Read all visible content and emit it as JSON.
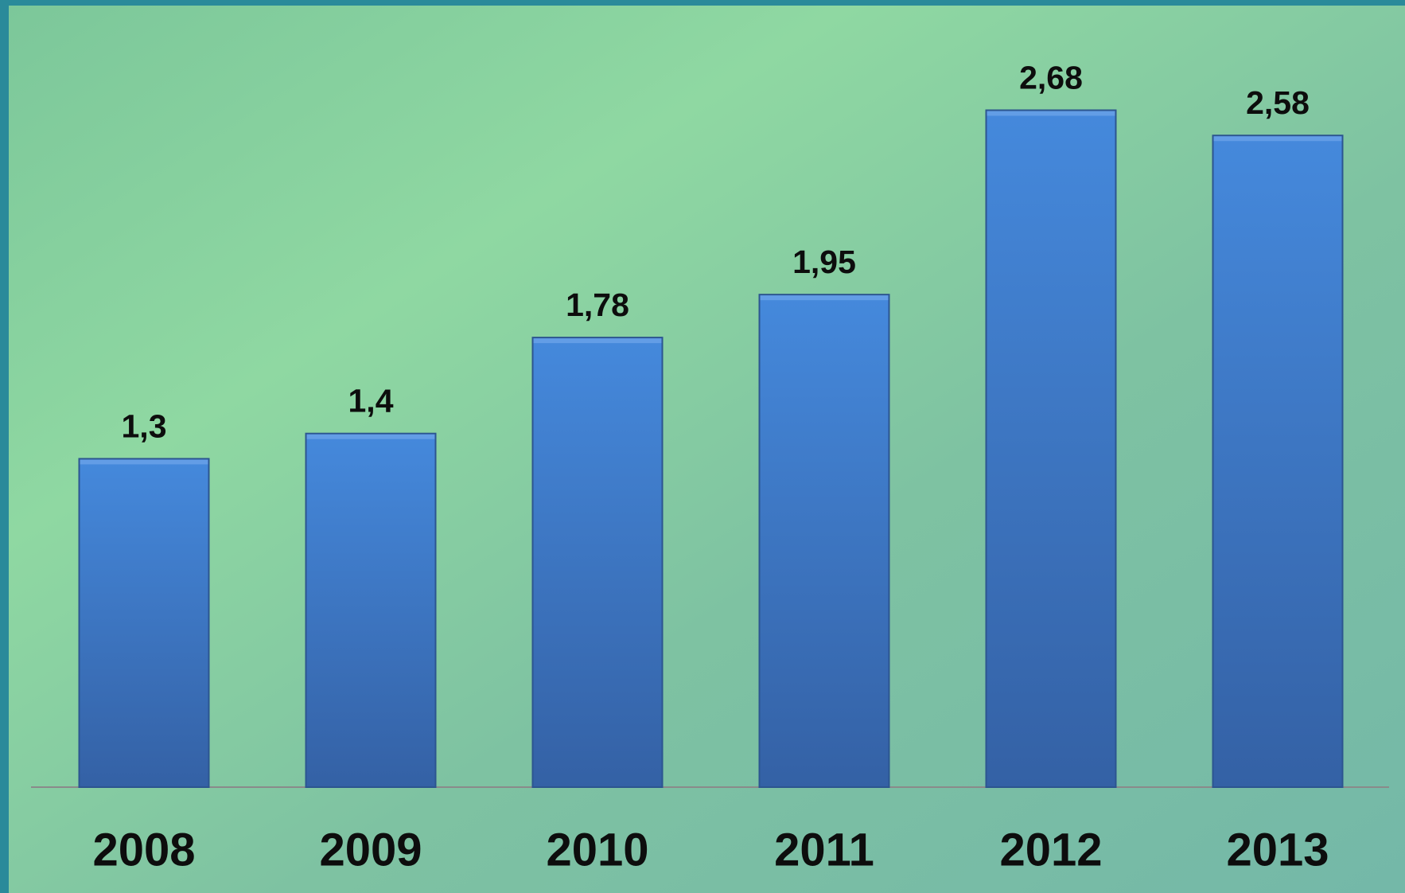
{
  "chart_data": {
    "type": "bar",
    "categories": [
      "2008",
      "2009",
      "2010",
      "2011",
      "2012",
      "2013"
    ],
    "values": [
      1.3,
      1.4,
      1.78,
      1.95,
      2.68,
      2.58
    ],
    "value_labels": [
      "1,3",
      "1,4",
      "1,78",
      "1,95",
      "2,68",
      "2,58"
    ],
    "color": "#3f7fd0"
  }
}
